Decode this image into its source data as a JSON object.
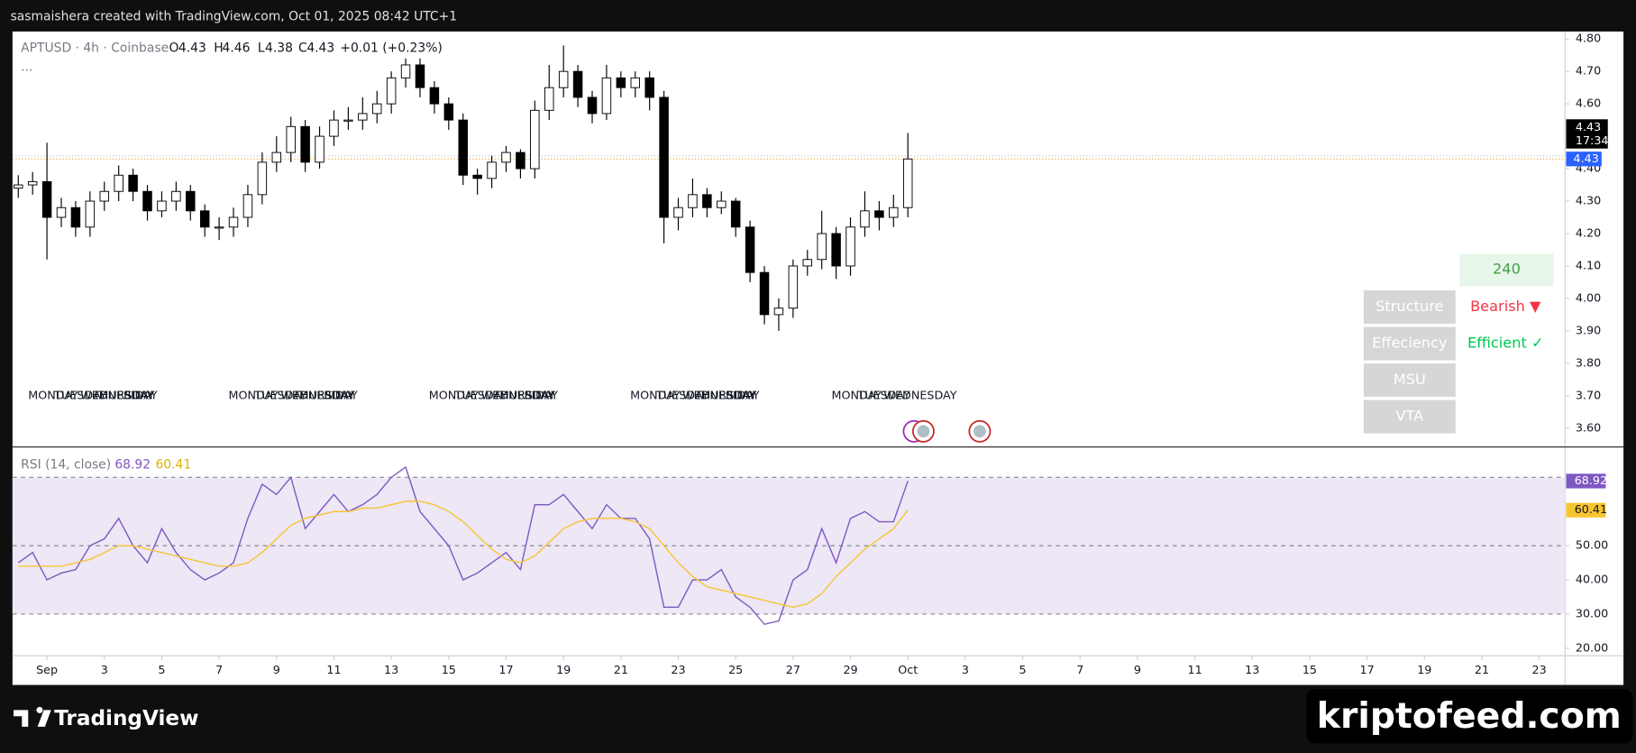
{
  "header": {
    "caption": "sasmaishera created with TradingView.com, Oct 01, 2025 08:42 UTC+1"
  },
  "legend": {
    "symbol": "APTUSD · 4h · Coinbase",
    "ohlc_labels": [
      "O",
      "H",
      "L",
      "C"
    ],
    "open": 4.43,
    "high": 4.46,
    "low": 4.38,
    "close": 4.43,
    "change": "+0.01 (+0.23%)",
    "more": "..."
  },
  "day_labels": [
    "MONDAY",
    "TUESDAY",
    "WEDNESDAY",
    "THURSDAY",
    "FRIDAY"
  ],
  "panel": {
    "timeframe": "240",
    "rows": [
      [
        "Structure",
        "Bearish ▼"
      ],
      [
        "Effeciency",
        "Efficient ✓"
      ],
      [
        "MSU"
      ],
      [
        "VTA"
      ]
    ]
  },
  "footer": {
    "brand": "TradingView",
    "watermark": "kriptofeed.com"
  },
  "chart_data": [
    {
      "type": "candlestick",
      "up_color": "#ffffff",
      "down_color": "#000000",
      "border_color": "#000000",
      "x": [
        -2,
        -1,
        0,
        1,
        2,
        3,
        4,
        5,
        6,
        7,
        8,
        9,
        10,
        11,
        12,
        13,
        14,
        15,
        16,
        17,
        18,
        19,
        20,
        21,
        22,
        23,
        24,
        25,
        26,
        27,
        28,
        29,
        30,
        31,
        32,
        33,
        34,
        35,
        36,
        37,
        38,
        39,
        40,
        41,
        42,
        43,
        44,
        45,
        46,
        47,
        48,
        49,
        50,
        51,
        52,
        53,
        54,
        55,
        56,
        57,
        58,
        59,
        60
      ],
      "open": [
        4.34,
        4.35,
        4.36,
        4.25,
        4.28,
        4.22,
        4.3,
        4.33,
        4.38,
        4.33,
        4.27,
        4.3,
        4.33,
        4.27,
        4.22,
        4.22,
        4.25,
        4.32,
        4.42,
        4.45,
        4.53,
        4.42,
        4.5,
        4.55,
        4.55,
        4.57,
        4.6,
        4.68,
        4.72,
        4.65,
        4.6,
        4.55,
        4.38,
        4.37,
        4.42,
        4.45,
        4.4,
        4.58,
        4.65,
        4.7,
        4.62,
        4.57,
        4.68,
        4.65,
        4.68,
        4.62,
        4.25,
        4.28,
        4.32,
        4.28,
        4.3,
        4.22,
        4.08,
        3.95,
        3.97,
        4.1,
        4.12,
        4.2,
        4.1,
        4.22,
        4.27,
        4.25,
        4.28
      ],
      "high": [
        4.38,
        4.39,
        4.48,
        4.31,
        4.3,
        4.33,
        4.36,
        4.41,
        4.4,
        4.35,
        4.33,
        4.36,
        4.35,
        4.29,
        4.25,
        4.28,
        4.35,
        4.45,
        4.5,
        4.56,
        4.55,
        4.53,
        4.58,
        4.59,
        4.62,
        4.64,
        4.7,
        4.74,
        4.74,
        4.67,
        4.62,
        4.57,
        4.4,
        4.44,
        4.47,
        4.46,
        4.61,
        4.72,
        4.78,
        4.72,
        4.64,
        4.72,
        4.7,
        4.7,
        4.7,
        4.64,
        4.31,
        4.37,
        4.34,
        4.33,
        4.31,
        4.24,
        4.1,
        4.0,
        4.12,
        4.15,
        4.27,
        4.22,
        4.25,
        4.33,
        4.3,
        4.32,
        4.51
      ],
      "low": [
        4.31,
        4.32,
        4.12,
        4.22,
        4.19,
        4.19,
        4.27,
        4.3,
        4.3,
        4.24,
        4.25,
        4.27,
        4.24,
        4.19,
        4.18,
        4.19,
        4.22,
        4.29,
        4.39,
        4.42,
        4.39,
        4.4,
        4.47,
        4.52,
        4.52,
        4.54,
        4.57,
        4.65,
        4.62,
        4.57,
        4.52,
        4.35,
        4.32,
        4.34,
        4.39,
        4.37,
        4.37,
        4.55,
        4.62,
        4.59,
        4.54,
        4.55,
        4.62,
        4.62,
        4.58,
        4.17,
        4.21,
        4.25,
        4.25,
        4.26,
        4.19,
        4.05,
        3.92,
        3.9,
        3.94,
        4.07,
        4.09,
        4.06,
        4.07,
        4.19,
        4.21,
        4.22,
        4.25
      ],
      "close": [
        4.35,
        4.36,
        4.25,
        4.28,
        4.22,
        4.3,
        4.33,
        4.38,
        4.33,
        4.27,
        4.3,
        4.33,
        4.27,
        4.22,
        4.22,
        4.25,
        4.32,
        4.42,
        4.45,
        4.53,
        4.42,
        4.5,
        4.55,
        4.55,
        4.57,
        4.6,
        4.68,
        4.72,
        4.65,
        4.6,
        4.55,
        4.38,
        4.37,
        4.42,
        4.45,
        4.4,
        4.58,
        4.65,
        4.7,
        4.62,
        4.57,
        4.68,
        4.65,
        4.68,
        4.62,
        4.25,
        4.28,
        4.32,
        4.28,
        4.3,
        4.22,
        4.08,
        3.95,
        3.97,
        4.1,
        4.12,
        4.2,
        4.1,
        4.22,
        4.27,
        4.25,
        4.28,
        4.43
      ],
      "last_price": 4.43,
      "countdown": "17:34",
      "last_price_color": "#2962ff",
      "xlim": [
        -2.4,
        105.8
      ],
      "ylim": [
        3.542,
        4.823
      ],
      "yticks": [
        {
          "value": 3.6,
          "label": "3.60"
        },
        {
          "value": 3.7,
          "label": "3.70"
        },
        {
          "value": 3.8,
          "label": "3.80"
        },
        {
          "value": 3.9,
          "label": "3.90"
        },
        {
          "value": 4.0,
          "label": "4.00"
        },
        {
          "value": 4.1,
          "label": "4.10"
        },
        {
          "value": 4.2,
          "label": "4.20"
        },
        {
          "value": 4.3,
          "label": "4.30"
        },
        {
          "value": 4.4,
          "label": "4.40"
        },
        {
          "value": 4.5,
          "label": "4.50"
        },
        {
          "value": 4.6,
          "label": "4.60"
        },
        {
          "value": 4.7,
          "label": "4.70"
        },
        {
          "value": 4.8,
          "label": "4.80"
        }
      ],
      "grid": false
    },
    {
      "type": "line",
      "title": "RSI (14, close)",
      "x": [
        -2,
        -1,
        0,
        1,
        2,
        3,
        4,
        5,
        6,
        7,
        8,
        9,
        10,
        11,
        12,
        13,
        14,
        15,
        16,
        17,
        18,
        19,
        20,
        21,
        22,
        23,
        24,
        25,
        26,
        27,
        28,
        29,
        30,
        31,
        32,
        33,
        34,
        35,
        36,
        37,
        38,
        39,
        40,
        41,
        42,
        43,
        44,
        45,
        46,
        47,
        48,
        49,
        50,
        51,
        52,
        53,
        54,
        55,
        56,
        57,
        58,
        59,
        60
      ],
      "series": [
        {
          "color": "#7e57c2",
          "values": [
            45,
            48,
            40,
            42,
            43,
            50,
            52,
            58,
            50,
            45,
            55,
            48,
            43,
            40,
            42,
            45,
            58,
            68,
            65,
            70,
            55,
            60,
            65,
            60,
            62,
            65,
            70,
            73,
            60,
            55,
            50,
            40,
            42,
            45,
            48,
            43,
            62,
            62,
            65,
            60,
            55,
            62,
            58,
            58,
            52,
            32,
            32,
            40,
            40,
            43,
            35,
            32,
            27,
            28,
            40,
            43,
            55,
            45,
            58,
            60,
            57,
            57,
            68.92
          ]
        },
        {
          "color": "#f7c531",
          "values": [
            44,
            44,
            44,
            44,
            45,
            46,
            48,
            50,
            50,
            49,
            48,
            47,
            46,
            45,
            44,
            44,
            45,
            48,
            52,
            56,
            58,
            59,
            60,
            60,
            61,
            61,
            62,
            63,
            63,
            62,
            60,
            57,
            53,
            49,
            46,
            45,
            47,
            51,
            55,
            57,
            58,
            58,
            58,
            57,
            55,
            50,
            45,
            41,
            38,
            37,
            36,
            35,
            34,
            33,
            32,
            33,
            36,
            41,
            45,
            49,
            52,
            55,
            60.41
          ]
        }
      ],
      "levels": [
        70,
        50,
        30
      ],
      "band_color": "#ede7f6",
      "xlim": [
        -2.4,
        105.8
      ],
      "ylim": [
        17.8,
        78.9
      ],
      "yticks": [
        {
          "value": 20,
          "label": "20.00"
        },
        {
          "value": 30,
          "label": "30.00"
        },
        {
          "value": 40,
          "label": "40.00"
        },
        {
          "value": 50,
          "label": "50.00"
        }
      ],
      "xticks": [
        {
          "value": 0,
          "label": "Sep"
        },
        {
          "value": 4,
          "label": "3"
        },
        {
          "value": 8,
          "label": "5"
        },
        {
          "value": 12,
          "label": "7"
        },
        {
          "value": 16,
          "label": "9"
        },
        {
          "value": 20,
          "label": "11"
        },
        {
          "value": 24,
          "label": "13"
        },
        {
          "value": 28,
          "label": "15"
        },
        {
          "value": 32,
          "label": "17"
        },
        {
          "value": 36,
          "label": "19"
        },
        {
          "value": 40,
          "label": "21"
        },
        {
          "value": 44,
          "label": "23"
        },
        {
          "value": 48,
          "label": "25"
        },
        {
          "value": 52,
          "label": "27"
        },
        {
          "value": 56,
          "label": "29"
        },
        {
          "value": 60,
          "label": "Oct"
        },
        {
          "value": 64,
          "label": "3"
        },
        {
          "value": 68,
          "label": "5"
        },
        {
          "value": 72,
          "label": "7"
        },
        {
          "value": 76,
          "label": "9"
        },
        {
          "value": 80,
          "label": "11"
        },
        {
          "value": 84,
          "label": "13"
        },
        {
          "value": 88,
          "label": "15"
        },
        {
          "value": 92,
          "label": "17"
        },
        {
          "value": 96,
          "label": "19"
        },
        {
          "value": 100,
          "label": "21"
        },
        {
          "value": 104,
          "label": "23"
        }
      ]
    }
  ]
}
